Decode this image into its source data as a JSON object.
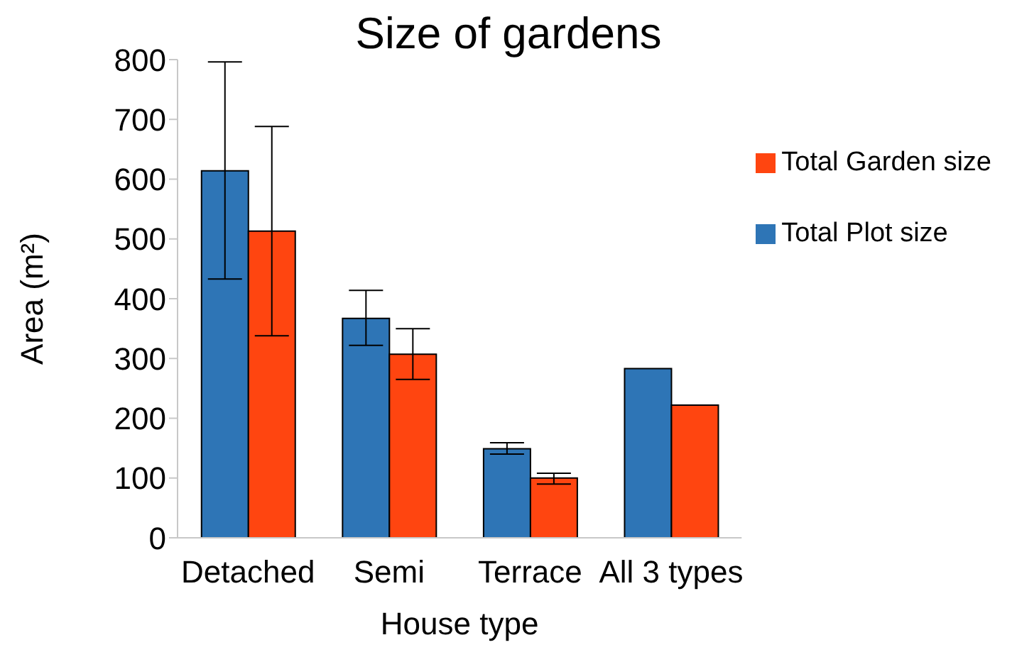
{
  "chart_data": {
    "type": "bar",
    "title": "Size of gardens",
    "xlabel": "House type",
    "ylabel": "Area (m²)",
    "categories": [
      "Detached",
      "Semi",
      "Terrace",
      "All 3 types"
    ],
    "series": [
      {
        "name": "Total Plot size",
        "color": "#2e75b6",
        "values": [
          614,
          367,
          149,
          283
        ],
        "errors": [
          [
            433,
            796
          ],
          [
            322,
            414
          ],
          [
            140,
            159
          ],
          null
        ]
      },
      {
        "name": "Total Garden size",
        "color": "#ff4510",
        "values": [
          513,
          307,
          100,
          222
        ],
        "errors": [
          [
            338,
            688
          ],
          [
            265,
            350
          ],
          [
            90,
            108
          ],
          null
        ]
      }
    ],
    "ylim": [
      0,
      800
    ],
    "yticks": [
      0,
      100,
      200,
      300,
      400,
      500,
      600,
      700,
      800
    ],
    "grid": false,
    "legend": "top right"
  }
}
